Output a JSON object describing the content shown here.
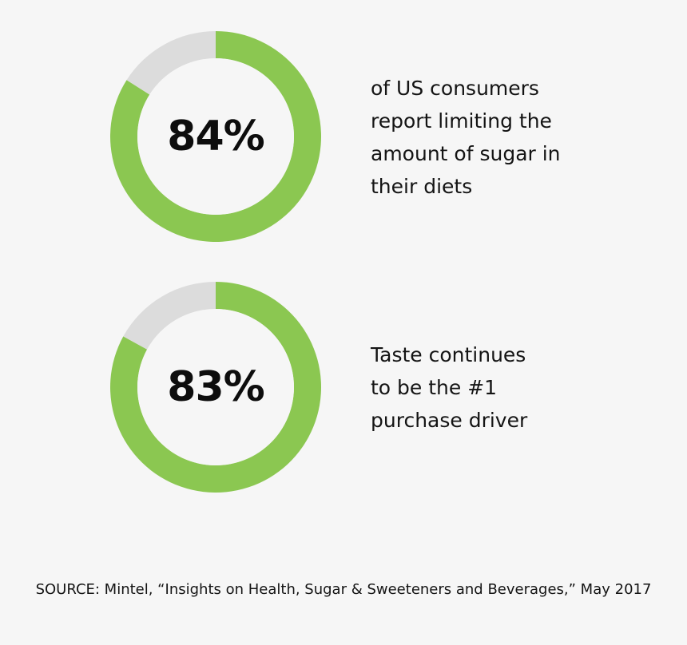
{
  "colors": {
    "accent": "#8bc751",
    "track": "#dcdcdc",
    "background": "#f6f6f6"
  },
  "chart_data": [
    {
      "type": "pie",
      "style": "donut",
      "center_label": "84%",
      "caption": "of US consumers\nreport limiting the\namount of sugar in\ntheir diets",
      "slices": [
        {
          "value": 84,
          "color": "#8bc751"
        },
        {
          "value": 16,
          "color": "#dcdcdc"
        }
      ]
    },
    {
      "type": "pie",
      "style": "donut",
      "center_label": "83%",
      "caption": "Taste continues\nto be the #1\npurchase driver",
      "slices": [
        {
          "value": 83,
          "color": "#8bc751"
        },
        {
          "value": 17,
          "color": "#dcdcdc"
        }
      ]
    }
  ],
  "source": "SOURCE: Mintel, “Insights on Health, Sugar & Sweeteners and Beverages,” May 2017"
}
